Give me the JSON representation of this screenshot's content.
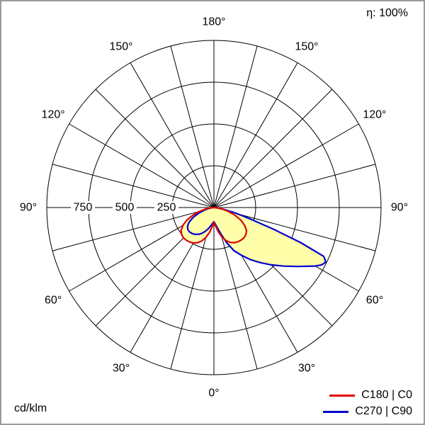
{
  "window": {
    "background": "#ffffff",
    "border_color": "#9a9a9a"
  },
  "labels": {
    "efficiency": "η: 100%",
    "unit": "cd/klm"
  },
  "legend": {
    "items": [
      {
        "label": "C180 | C0",
        "color": "#dd0000"
      },
      {
        "label": "C270 | C90",
        "color": "#0000cc"
      }
    ]
  },
  "chart_data": {
    "type": "polar",
    "variant": "photometric-luminous-intensity-distribution",
    "unit": "cd/klm",
    "efficiency_percent": 100,
    "angular": {
      "zero_position": "bottom",
      "labeled_ticks_deg": [
        0,
        30,
        60,
        90,
        120,
        150,
        180
      ],
      "label_suffix": "°",
      "spoke_step_deg": 15
    },
    "radial": {
      "ticks": [
        250,
        500,
        750
      ],
      "tick_labels": [
        "250",
        "500",
        "750"
      ],
      "circle_values": [
        250,
        500,
        750,
        1000
      ],
      "max": 1000
    },
    "grid_color": "#000000",
    "fill_color": "#ffffaa",
    "series": [
      {
        "name": "C180 | C0",
        "color": "#dd0000",
        "gamma_deg": [
          -90,
          -85,
          -80,
          -75,
          -70,
          -65,
          -60,
          -55,
          -50,
          -45,
          -40,
          -35,
          -30,
          -25,
          -20,
          -15,
          -10,
          -5,
          0,
          5,
          10,
          15,
          20,
          25,
          30,
          35,
          40,
          45,
          50,
          55,
          60,
          65,
          70,
          75,
          80,
          85,
          90
        ],
        "intensity_cd_per_klm": [
          6,
          20,
          50,
          90,
          135,
          180,
          215,
          240,
          252,
          257,
          256,
          252,
          245,
          232,
          213,
          185,
          150,
          115,
          88,
          110,
          145,
          182,
          210,
          230,
          243,
          250,
          254,
          255,
          250,
          238,
          212,
          178,
          133,
          88,
          48,
          18,
          5
        ]
      },
      {
        "name": "C270 | C90",
        "color": "#0000cc",
        "gamma_deg": [
          -90,
          -85,
          -80,
          -75,
          -70,
          -65,
          -60,
          -55,
          -50,
          -45,
          -40,
          -35,
          -30,
          -25,
          -20,
          -15,
          -10,
          -5,
          0,
          5,
          10,
          15,
          20,
          25,
          30,
          35,
          40,
          45,
          50,
          55,
          60,
          62,
          64,
          66,
          68,
          70,
          72,
          74,
          76,
          80,
          85,
          90
        ],
        "intensity_cd_per_klm": [
          3,
          10,
          28,
          58,
          95,
          135,
          170,
          193,
          204,
          206,
          203,
          196,
          185,
          170,
          152,
          132,
          112,
          96,
          85,
          100,
          125,
          165,
          225,
          285,
          330,
          380,
          430,
          485,
          545,
          615,
          700,
          730,
          745,
          720,
          560,
          380,
          250,
          175,
          125,
          55,
          20,
          6
        ]
      }
    ]
  }
}
